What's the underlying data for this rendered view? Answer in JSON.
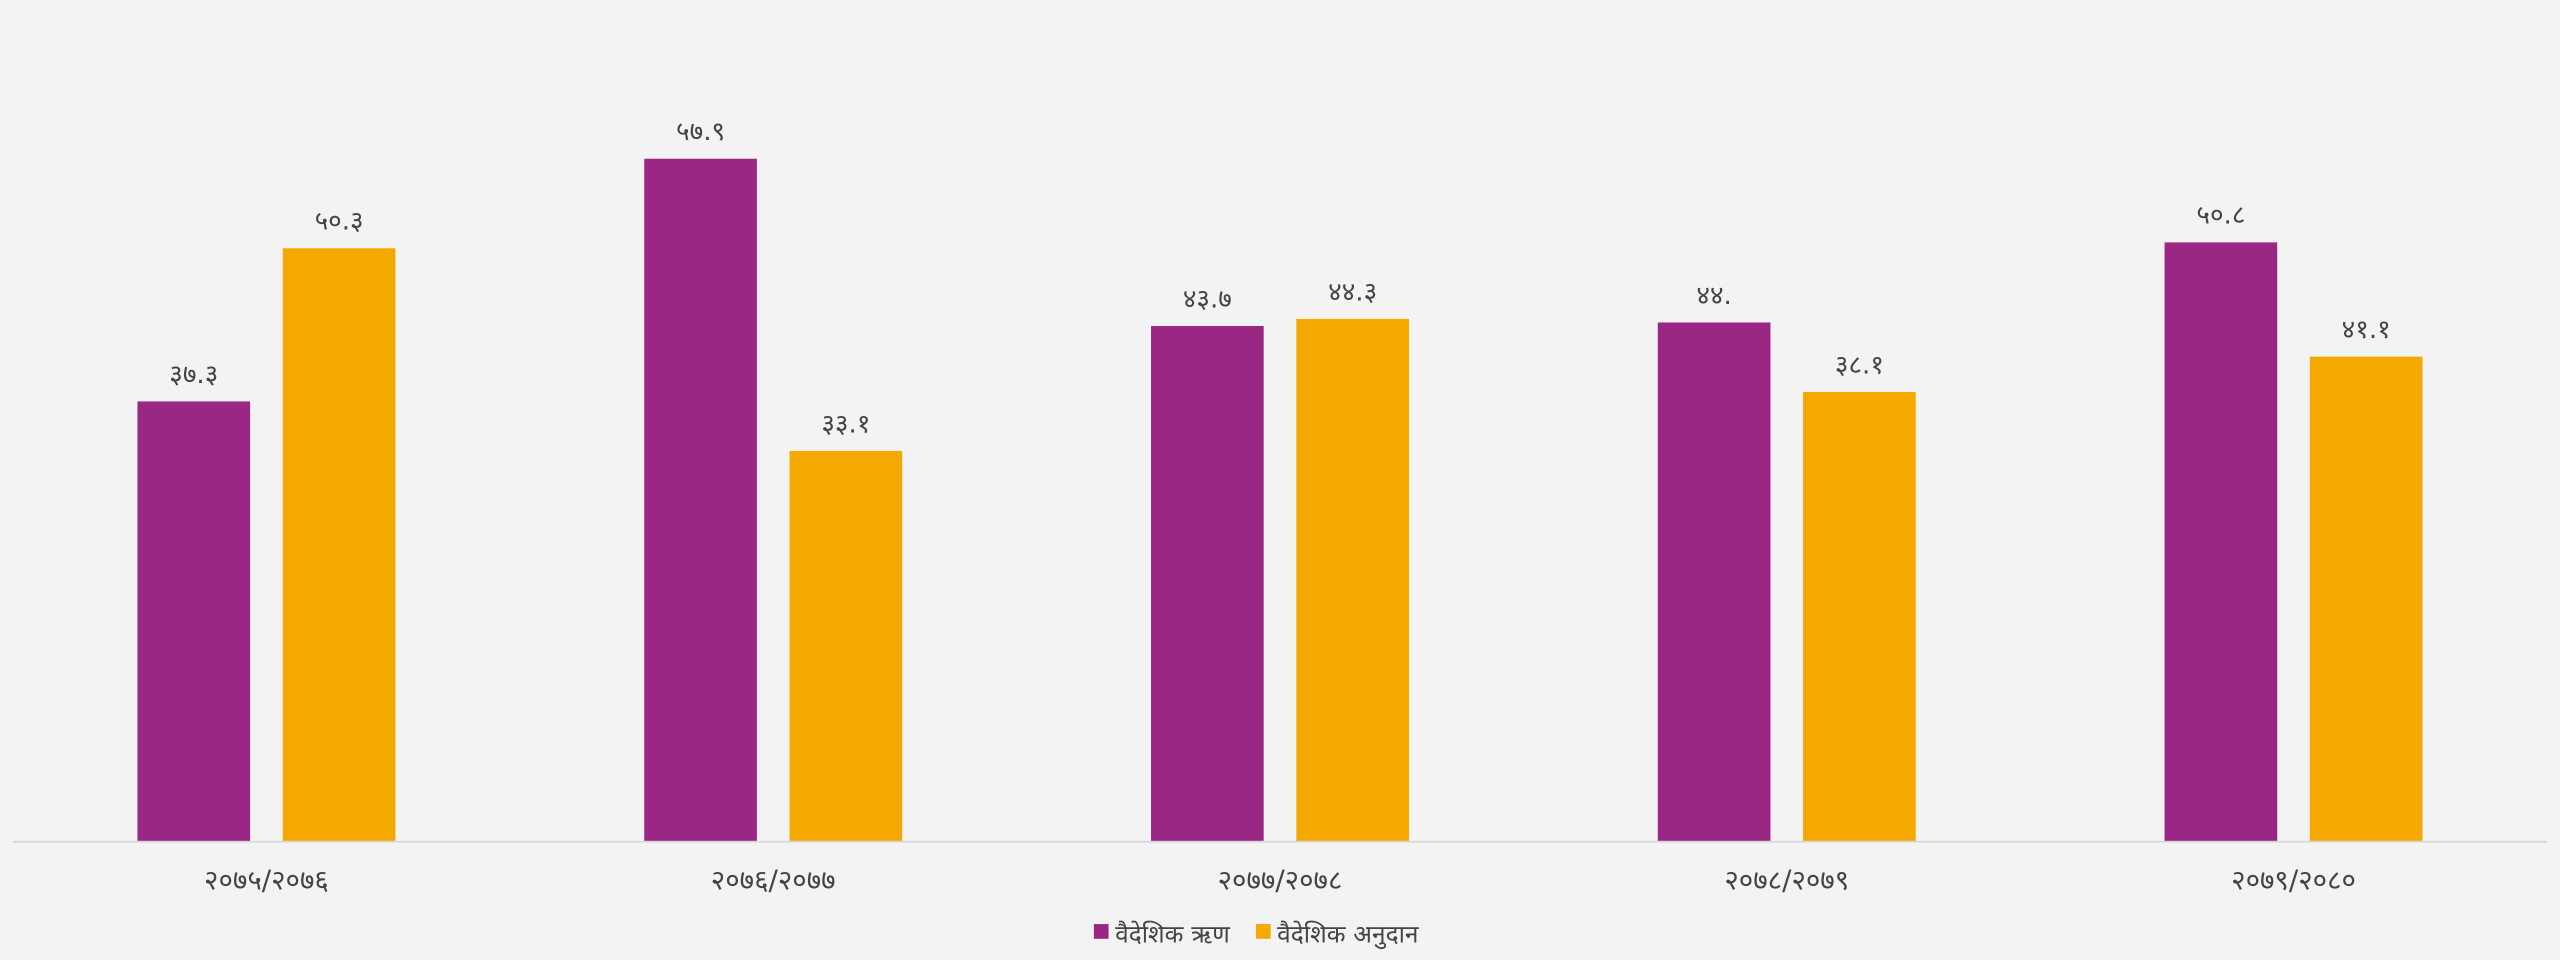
{
  "chart_data": {
    "type": "bar",
    "categories": [
      "२०७५/२०७६",
      "२०७६/२०७७",
      "२०७७/२०७८",
      "२०७८/२०७९",
      "२०७९/२०८०"
    ],
    "series": [
      {
        "name": "वैदेशिक ऋण",
        "color": "#9b2785",
        "values": [
          37.3,
          57.9,
          43.7,
          44,
          50.8
        ],
        "value_labels": [
          "३७.३",
          "५७.९",
          "४३.७",
          "४४.",
          "५०.८"
        ]
      },
      {
        "name": "वैदेशिक अनुदान",
        "color": "#f5a800",
        "values": [
          50.3,
          33.1,
          44.3,
          38.1,
          41.1
        ],
        "value_labels": [
          "५०.३",
          "३३.१",
          "४४.३",
          "३८.१",
          "४१.१"
        ]
      }
    ],
    "ylim": [
      0,
      65
    ]
  }
}
